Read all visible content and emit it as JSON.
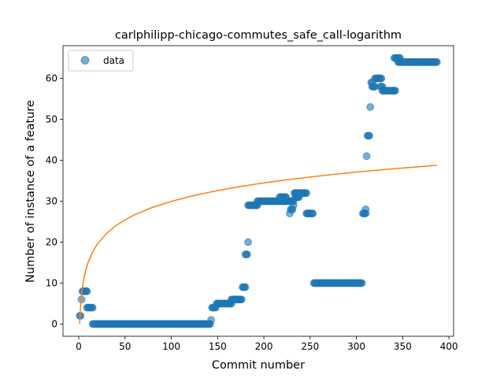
{
  "chart_data": {
    "type": "scatter",
    "title": "carlphilipp-chicago-commutes_safe_call-logarithm",
    "xlabel": "Commit number",
    "ylabel": "Number of instance of a feature",
    "xlim": [
      -17,
      405
    ],
    "ylim": [
      -3,
      68
    ],
    "xticks": [
      0,
      50,
      100,
      150,
      200,
      250,
      300,
      350,
      400
    ],
    "yticks": [
      0,
      10,
      20,
      30,
      40,
      50,
      60
    ],
    "grid": false,
    "legend": {
      "position": "top-left",
      "entries": [
        "data"
      ]
    },
    "colors": {
      "data": "#1f77b4",
      "fit": "#ff7f0e"
    },
    "series": [
      {
        "name": "data",
        "kind": "scatter",
        "segments": [
          {
            "x_start": 1,
            "x_end": 2,
            "y": 2
          },
          {
            "x_start": 3,
            "x_end": 3,
            "y": 6
          },
          {
            "x_start": 4,
            "x_end": 9,
            "y": 8
          },
          {
            "x_start": 9,
            "x_end": 15,
            "y": 4
          },
          {
            "x_start": 15,
            "x_end": 142,
            "y": 0
          },
          {
            "x_start": 143,
            "x_end": 143,
            "y": 1
          },
          {
            "x_start": 144,
            "x_end": 148,
            "y": 4
          },
          {
            "x_start": 149,
            "x_end": 165,
            "y": 5
          },
          {
            "x_start": 165,
            "x_end": 176,
            "y": 6
          },
          {
            "x_start": 177,
            "x_end": 180,
            "y": 9
          },
          {
            "x_start": 180,
            "x_end": 182,
            "y": 17
          },
          {
            "x_start": 183,
            "x_end": 183,
            "y": 20
          },
          {
            "x_start": 183,
            "x_end": 193,
            "y": 29
          },
          {
            "x_start": 193,
            "x_end": 232,
            "y": 30
          },
          {
            "x_start": 217,
            "x_end": 224,
            "y": 31
          },
          {
            "x_start": 228,
            "x_end": 228,
            "y": 27
          },
          {
            "x_start": 229,
            "x_end": 231,
            "y": 28
          },
          {
            "x_start": 232,
            "x_end": 232,
            "y": 29
          },
          {
            "x_start": 233,
            "x_end": 246,
            "y": 32
          },
          {
            "x_start": 234,
            "x_end": 238,
            "y": 31
          },
          {
            "x_start": 246,
            "x_end": 253,
            "y": 27
          },
          {
            "x_start": 254,
            "x_end": 306,
            "y": 10
          },
          {
            "x_start": 307,
            "x_end": 310,
            "y": 27
          },
          {
            "x_start": 310,
            "x_end": 310,
            "y": 28
          },
          {
            "x_start": 311,
            "x_end": 311,
            "y": 41
          },
          {
            "x_start": 312,
            "x_end": 314,
            "y": 46
          },
          {
            "x_start": 315,
            "x_end": 315,
            "y": 53
          },
          {
            "x_start": 316,
            "x_end": 317,
            "y": 59
          },
          {
            "x_start": 317,
            "x_end": 320,
            "y": 58
          },
          {
            "x_start": 320,
            "x_end": 327,
            "y": 60
          },
          {
            "x_start": 326,
            "x_end": 328,
            "y": 58
          },
          {
            "x_start": 328,
            "x_end": 342,
            "y": 57
          },
          {
            "x_start": 341,
            "x_end": 347,
            "y": 65
          },
          {
            "x_start": 345,
            "x_end": 387,
            "y": 64
          }
        ]
      },
      {
        "kind": "line",
        "model": "logarithmic",
        "x": [
          1,
          2,
          3,
          4,
          5,
          7,
          10,
          15,
          20,
          30,
          40,
          50,
          60,
          80,
          100,
          125,
          150,
          175,
          200,
          225,
          250,
          275,
          300,
          325,
          350,
          375,
          387
        ],
        "y": [
          0.0,
          4.51,
          7.15,
          9.02,
          10.47,
          12.66,
          14.98,
          17.62,
          19.49,
          22.13,
          24.0,
          25.45,
          26.64,
          28.51,
          29.96,
          31.41,
          32.6,
          33.6,
          34.47,
          35.24,
          35.92,
          36.55,
          37.11,
          37.63,
          38.11,
          38.56,
          38.77
        ]
      }
    ]
  }
}
